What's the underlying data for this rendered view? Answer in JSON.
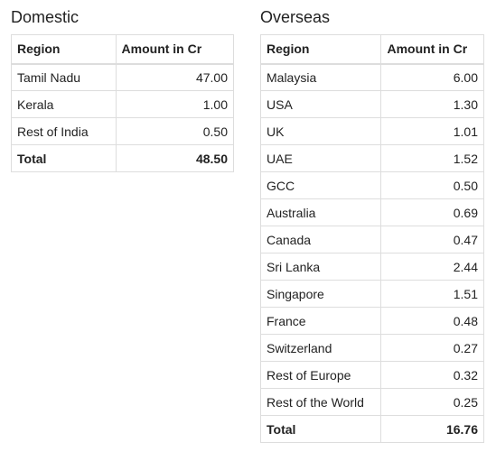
{
  "domestic": {
    "title": "Domestic",
    "headers": [
      "Region",
      "Amount in Cr"
    ],
    "rows": [
      {
        "region": "Tamil Nadu",
        "amount": "47.00"
      },
      {
        "region": "Kerala",
        "amount": "1.00"
      },
      {
        "region": "Rest of India",
        "amount": "0.50"
      }
    ],
    "total": {
      "label": "Total",
      "amount": "48.50"
    }
  },
  "overseas": {
    "title": "Overseas",
    "headers": [
      "Region",
      "Amount in Cr"
    ],
    "rows": [
      {
        "region": "Malaysia",
        "amount": "6.00"
      },
      {
        "region": "USA",
        "amount": "1.30"
      },
      {
        "region": "UK",
        "amount": "1.01"
      },
      {
        "region": "UAE",
        "amount": "1.52"
      },
      {
        "region": "GCC",
        "amount": "0.50"
      },
      {
        "region": "Australia",
        "amount": "0.69"
      },
      {
        "region": "Canada",
        "amount": "0.47"
      },
      {
        "region": "Sri Lanka",
        "amount": "2.44"
      },
      {
        "region": "Singapore",
        "amount": "1.51"
      },
      {
        "region": "France",
        "amount": "0.48"
      },
      {
        "region": "Switzerland",
        "amount": "0.27"
      },
      {
        "region": "Rest of Europe",
        "amount": "0.32"
      },
      {
        "region": "Rest of the World",
        "amount": "0.25"
      }
    ],
    "total": {
      "label": "Total",
      "amount": "16.76"
    }
  }
}
